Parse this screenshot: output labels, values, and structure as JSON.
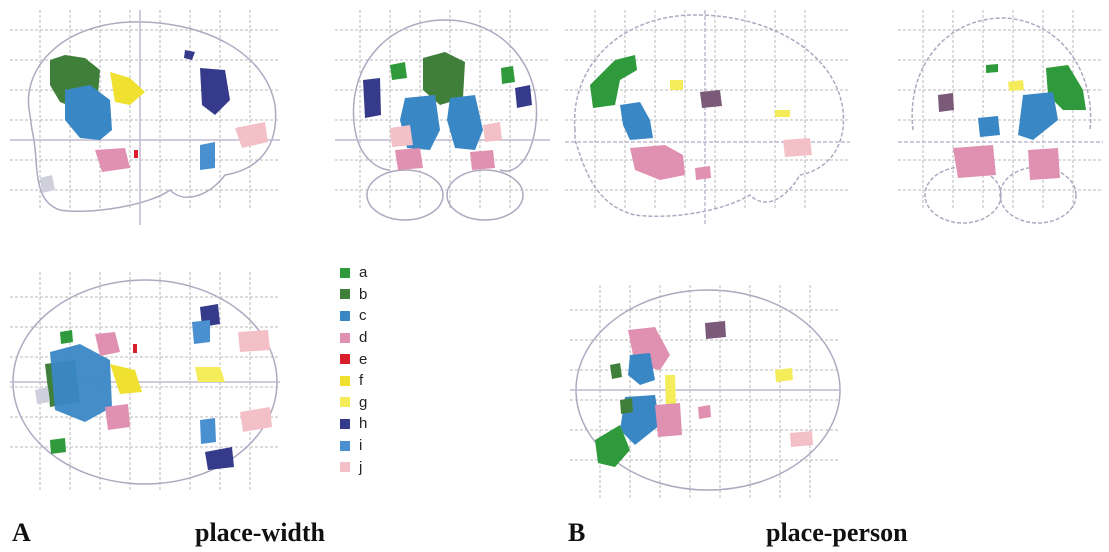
{
  "panels": {
    "A": {
      "letter": "A",
      "title": "place-width"
    },
    "B": {
      "letter": "B",
      "title": "place-person"
    }
  },
  "legend": [
    {
      "label": "a",
      "color": "#2e9a3c"
    },
    {
      "label": "b",
      "color": "#3f7f3a"
    },
    {
      "label": "c",
      "color": "#3a87c6"
    },
    {
      "label": "d",
      "color": "#e090b0"
    },
    {
      "label": "e",
      "color": "#d61f2a"
    },
    {
      "label": "f",
      "color": "#f0e030"
    },
    {
      "label": "g",
      "color": "#f5ec5a"
    },
    {
      "label": "h",
      "color": "#353a8a"
    },
    {
      "label": "i",
      "color": "#4a90d0"
    },
    {
      "label": "j",
      "color": "#f2c0c6"
    }
  ]
}
